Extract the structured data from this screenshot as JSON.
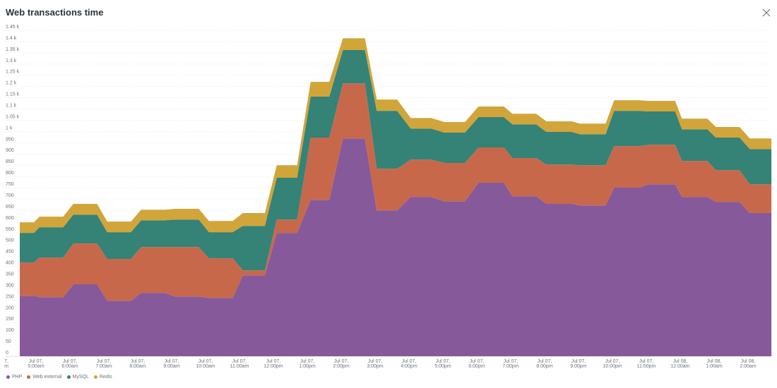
{
  "title": "Web transactions time",
  "close_icon": "close-icon",
  "chart_data": {
    "type": "area",
    "stacked": true,
    "title": "Web transactions time",
    "xlabel": "",
    "ylabel": "",
    "x_unit": "hours since Jul 07 00:00",
    "xlim": [
      4.52,
      26.69
    ],
    "ylim": [
      0,
      1450
    ],
    "grid": true,
    "legend_position": "bottom-left",
    "y_ticks": [
      {
        "value": 0,
        "label": "0"
      },
      {
        "value": 50,
        "label": "50"
      },
      {
        "value": 100,
        "label": "100"
      },
      {
        "value": 150,
        "label": "150"
      },
      {
        "value": 200,
        "label": "200"
      },
      {
        "value": 250,
        "label": "250"
      },
      {
        "value": 300,
        "label": "300"
      },
      {
        "value": 350,
        "label": "350"
      },
      {
        "value": 400,
        "label": "400"
      },
      {
        "value": 450,
        "label": "450"
      },
      {
        "value": 500,
        "label": "500"
      },
      {
        "value": 550,
        "label": "550"
      },
      {
        "value": 600,
        "label": "600"
      },
      {
        "value": 650,
        "label": "650"
      },
      {
        "value": 700,
        "label": "700"
      },
      {
        "value": 750,
        "label": "750"
      },
      {
        "value": 800,
        "label": "800"
      },
      {
        "value": 850,
        "label": "850"
      },
      {
        "value": 900,
        "label": "900"
      },
      {
        "value": 950,
        "label": "950"
      },
      {
        "value": 1000,
        "label": "1 k"
      },
      {
        "value": 1050,
        "label": "1.05 k"
      },
      {
        "value": 1100,
        "label": "1.1 k"
      },
      {
        "value": 1150,
        "label": "1.15 k"
      },
      {
        "value": 1200,
        "label": "1.2 k"
      },
      {
        "value": 1250,
        "label": "1.25 k"
      },
      {
        "value": 1300,
        "label": "1.3 k"
      },
      {
        "value": 1350,
        "label": "1.35 k"
      },
      {
        "value": 1400,
        "label": "1.4 k"
      },
      {
        "value": 1450,
        "label": "1.45 k"
      }
    ],
    "x_ticks": [
      {
        "value": 4,
        "line1": "7,",
        "line2": "m"
      },
      {
        "value": 5,
        "line1": "Jul 07,",
        "line2": "5:00am"
      },
      {
        "value": 6,
        "line1": "Jul 07,",
        "line2": "6:00am"
      },
      {
        "value": 7,
        "line1": "Jul 07,",
        "line2": "7:00am"
      },
      {
        "value": 8,
        "line1": "Jul 07,",
        "line2": "8:00am"
      },
      {
        "value": 9,
        "line1": "Jul 07,",
        "line2": "9:00am"
      },
      {
        "value": 10,
        "line1": "Jul 07,",
        "line2": "10:00am"
      },
      {
        "value": 11,
        "line1": "Jul 07,",
        "line2": "11:00am"
      },
      {
        "value": 12,
        "line1": "Jul 07,",
        "line2": "12:00pm"
      },
      {
        "value": 13,
        "line1": "Jul 07,",
        "line2": "1:00pm"
      },
      {
        "value": 14,
        "line1": "Jul 07,",
        "line2": "2:00pm"
      },
      {
        "value": 15,
        "line1": "Jul 07,",
        "line2": "3:00pm"
      },
      {
        "value": 16,
        "line1": "Jul 07,",
        "line2": "4:00pm"
      },
      {
        "value": 17,
        "line1": "Jul 07,",
        "line2": "5:00pm"
      },
      {
        "value": 18,
        "line1": "Jul 07,",
        "line2": "6:00pm"
      },
      {
        "value": 19,
        "line1": "Jul 07,",
        "line2": "7:00pm"
      },
      {
        "value": 20,
        "line1": "Jul 07,",
        "line2": "8:00pm"
      },
      {
        "value": 21,
        "line1": "Jul 07,",
        "line2": "9:00pm"
      },
      {
        "value": 22,
        "line1": "Jul 07,",
        "line2": "10:00pm"
      },
      {
        "value": 23,
        "line1": "Jul 07,",
        "line2": "11:00pm"
      },
      {
        "value": 24,
        "line1": "Jul 08,",
        "line2": "12:00am"
      },
      {
        "value": 25,
        "line1": "Jul 08,",
        "line2": "1:00am"
      },
      {
        "value": 26,
        "line1": "Jul 08,",
        "line2": "2:00am"
      }
    ],
    "segments": [
      {
        "x": [
          4.52,
          4.94
        ],
        "PHP": 269,
        "Web external": 148,
        "MySQL": 132,
        "Redis": 47
      },
      {
        "x": [
          5.1,
          5.8
        ],
        "PHP": 263,
        "Web external": 176,
        "MySQL": 135,
        "Redis": 47
      },
      {
        "x": [
          6.1,
          6.8
        ],
        "PHP": 320,
        "Web external": 182,
        "MySQL": 128,
        "Redis": 48
      },
      {
        "x": [
          7.1,
          7.8
        ],
        "PHP": 247,
        "Web external": 186,
        "MySQL": 119,
        "Redis": 47
      },
      {
        "x": [
          8.1,
          8.8
        ],
        "PHP": 282,
        "Web external": 204,
        "MySQL": 119,
        "Redis": 47
      },
      {
        "x": [
          9.1,
          9.8
        ],
        "PHP": 266,
        "Web external": 220,
        "MySQL": 122,
        "Redis": 48
      },
      {
        "x": [
          10.1,
          10.8
        ],
        "PHP": 260,
        "Web external": 176,
        "MySQL": 116,
        "Redis": 50
      },
      {
        "x": [
          11.1,
          11.75
        ],
        "PHP": 360,
        "Web external": 22,
        "MySQL": 198,
        "Redis": 57
      },
      {
        "x": [
          12.1,
          12.7
        ],
        "PHP": 549,
        "Web external": 59,
        "MySQL": 186,
        "Redis": 56
      },
      {
        "x": [
          13.1,
          13.65
        ],
        "PHP": 696,
        "Web external": 277,
        "MySQL": 182,
        "Redis": 66
      },
      {
        "x": [
          14.05,
          14.7
        ],
        "PHP": 969,
        "Web external": 245,
        "MySQL": 148,
        "Redis": 53
      },
      {
        "x": [
          15.05,
          15.65
        ],
        "PHP": 649,
        "Web external": 185,
        "MySQL": 258,
        "Redis": 50
      },
      {
        "x": [
          16.05,
          16.65
        ],
        "PHP": 709,
        "Web external": 166,
        "MySQL": 138,
        "Redis": 47
      },
      {
        "x": [
          17.05,
          17.65
        ],
        "PHP": 690,
        "Web external": 170,
        "MySQL": 135,
        "Redis": 47
      },
      {
        "x": [
          18.05,
          18.8
        ],
        "PHP": 772,
        "Web external": 157,
        "MySQL": 135,
        "Redis": 47
      },
      {
        "x": [
          19.05,
          19.75
        ],
        "PHP": 712,
        "Web external": 170,
        "MySQL": 150,
        "Redis": 47
      },
      {
        "x": [
          20.05,
          20.8
        ],
        "PHP": 678,
        "Web external": 175,
        "MySQL": 145,
        "Redis": 47
      },
      {
        "x": [
          21.05,
          21.8
        ],
        "PHP": 671,
        "Web external": 179,
        "MySQL": 138,
        "Redis": 47
      },
      {
        "x": [
          22.05,
          22.8
        ],
        "PHP": 750,
        "Web external": 185,
        "MySQL": 157,
        "Redis": 47
      },
      {
        "x": [
          23.05,
          23.85
        ],
        "PHP": 765,
        "Web external": 176,
        "MySQL": 148,
        "Redis": 47
      },
      {
        "x": [
          24.05,
          24.8
        ],
        "PHP": 709,
        "Web external": 160,
        "MySQL": 141,
        "Redis": 47
      },
      {
        "x": [
          25.05,
          25.75
        ],
        "PHP": 687,
        "Web external": 141,
        "MySQL": 145,
        "Redis": 47
      },
      {
        "x": [
          26.05,
          26.69
        ],
        "PHP": 637,
        "Web external": 128,
        "MySQL": 157,
        "Redis": 47
      }
    ],
    "series": [
      {
        "name": "PHP",
        "color": "#86599a"
      },
      {
        "name": "Web external",
        "color": "#c8684b"
      },
      {
        "name": "MySQL",
        "color": "#358276"
      },
      {
        "name": "Redis",
        "color": "#d1a53a"
      }
    ]
  }
}
